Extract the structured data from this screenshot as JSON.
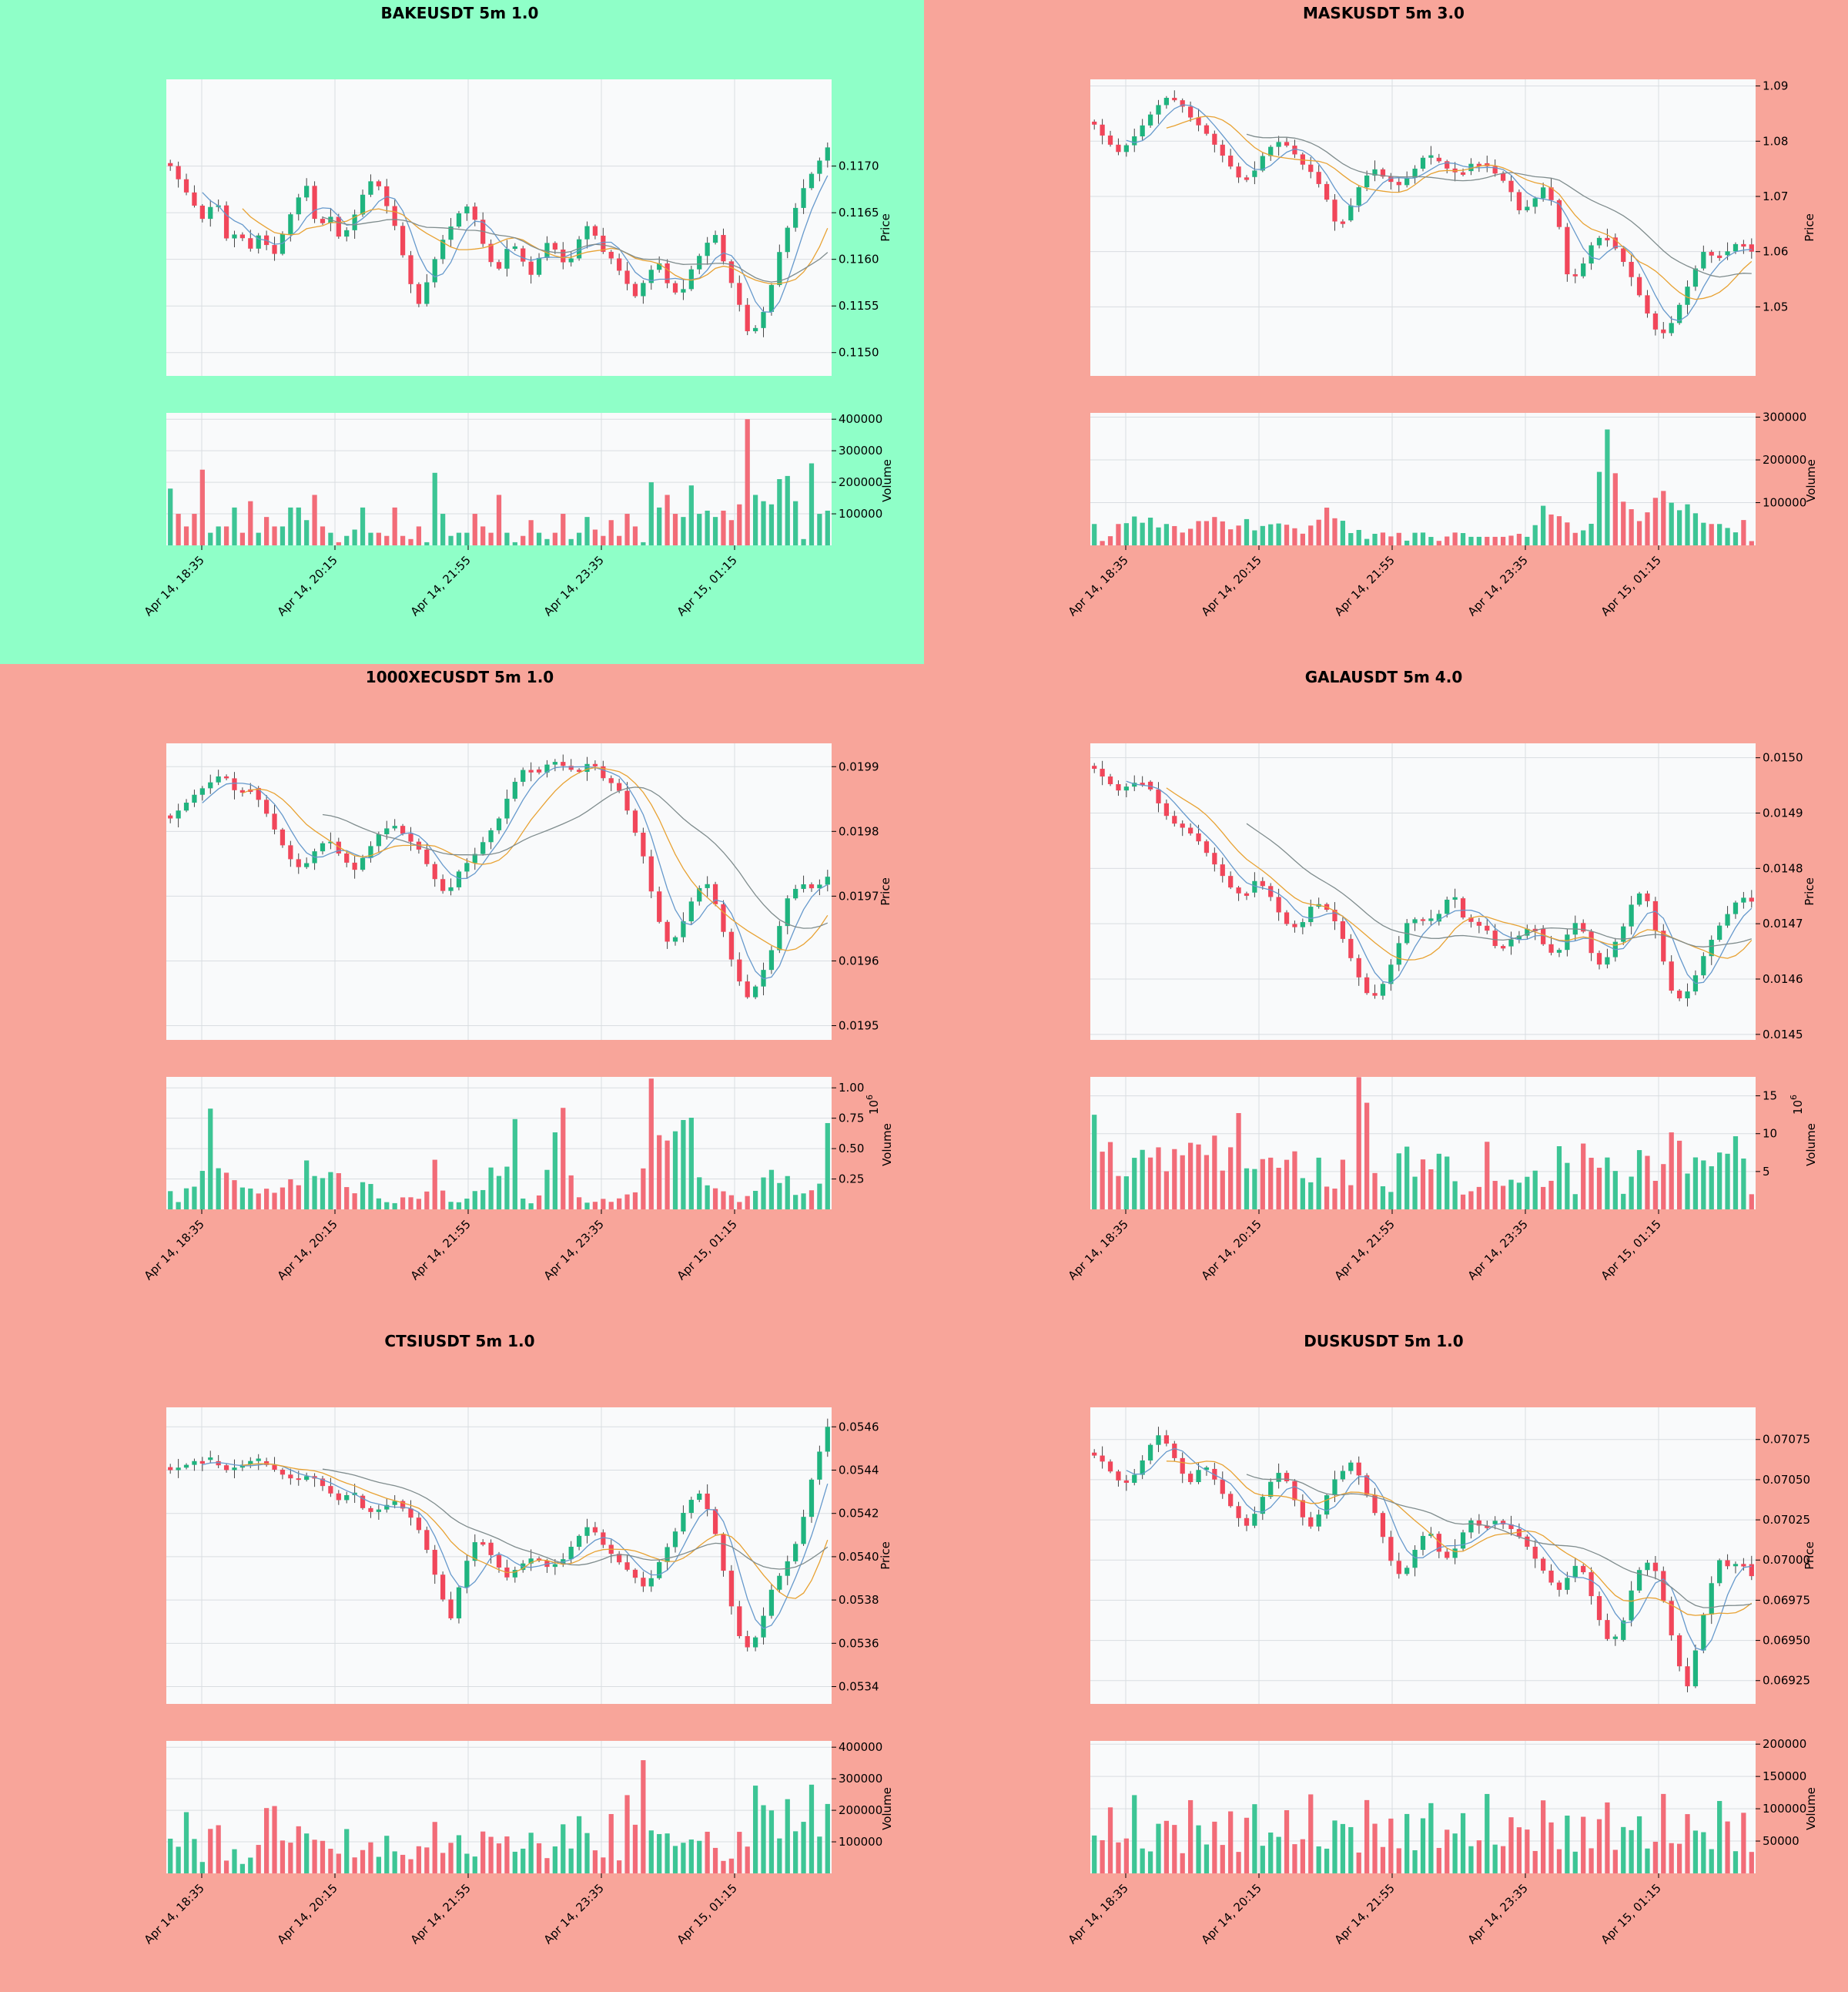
{
  "colors": {
    "bg_good": "#8fffc8",
    "bg_bad": "#f8a59a",
    "panel": "#f9fafb",
    "up": "#1fb47f",
    "down": "#f1465a",
    "vol_up": "#3dc595",
    "vol_down": "#f26c78",
    "ma_fast": "#6699cc",
    "ma_slow": "#e8a233",
    "ma_long": "#7f8c8d",
    "grid": "#d9dde1",
    "wick": "#444444"
  },
  "x_tick_labels": [
    "Apr 14, 18:35",
    "Apr 14, 20:15",
    "Apr 14, 21:55",
    "Apr 14, 23:35",
    "Apr 15, 01:15"
  ],
  "price_label": "Price",
  "volume_label": "Volume",
  "chart_data": [
    {
      "type": "candlestick",
      "title": "BAKEUSDT 5m 1.0",
      "background": "good",
      "ylabel": "Price",
      "ylim": [
        0.11475,
        0.11793
      ],
      "price_ticks": [
        "0.1150",
        "0.1155",
        "0.1160",
        "0.1165",
        "0.1170"
      ],
      "vlim": [
        0,
        420000
      ],
      "volume_ticks": [
        "100000",
        "200000",
        "300000",
        "400000"
      ],
      "volume_exponent": "",
      "path": [
        0.117,
        0.1168,
        0.1166,
        0.1164,
        0.1167,
        0.1162,
        0.1163,
        0.1161,
        0.1163,
        0.116,
        0.1163,
        0.1166,
        0.1168,
        0.1163,
        0.1165,
        0.1162,
        0.1164,
        0.1167,
        0.1169,
        0.1166,
        0.1163,
        0.1158,
        0.1155,
        0.1159,
        0.1162,
        0.1164,
        0.1166,
        0.1164,
        0.116,
        0.1159,
        0.1162,
        0.116,
        0.1158,
        0.1162,
        0.1161,
        0.1159,
        0.1162,
        0.1164,
        0.1161,
        0.116,
        0.1158,
        0.1156,
        0.1158,
        0.116,
        0.1157,
        0.1156,
        0.1159,
        0.1161,
        0.1163,
        0.1159,
        0.1156,
        0.1152,
        0.1153,
        0.1157,
        0.1162,
        0.1165,
        0.1168,
        0.117,
        0.1172
      ],
      "volumes": [
        180000,
        100000,
        60000,
        100000,
        240000,
        40000,
        60000,
        60000,
        120000,
        40000,
        140000,
        40000,
        90000,
        60000,
        60000,
        120000,
        120000,
        80000,
        160000,
        60000,
        40000,
        10000,
        30000,
        50000,
        120000,
        40000,
        40000,
        30000,
        120000,
        30000,
        20000,
        60000,
        10000,
        230000,
        100000,
        30000,
        40000,
        40000,
        100000,
        60000,
        40000,
        160000,
        40000,
        10000,
        30000,
        80000,
        40000,
        20000,
        40000,
        100000,
        20000,
        40000,
        90000,
        50000,
        30000,
        80000,
        30000,
        100000,
        60000,
        10000,
        200000,
        120000,
        160000,
        100000,
        90000,
        190000,
        100000,
        110000,
        90000,
        110000,
        80000,
        130000,
        400000,
        160000,
        140000,
        130000,
        210000,
        220000,
        140000,
        20000,
        260000,
        100000,
        110000
      ]
    },
    {
      "type": "candlestick",
      "title": "MASKUSDT 5m 3.0",
      "background": "bad",
      "ylabel": "Price",
      "ylim": [
        1.0375,
        1.0912
      ],
      "price_ticks": [
        "1.05",
        "1.06",
        "1.07",
        "1.08",
        "1.09"
      ],
      "vlim": [
        0,
        310000
      ],
      "volume_ticks": [
        "100000",
        "200000",
        "300000"
      ],
      "volume_exponent": "",
      "path": [
        1.083,
        1.08,
        1.078,
        1.08,
        1.083,
        1.086,
        1.088,
        1.087,
        1.084,
        1.082,
        1.079,
        1.076,
        1.073,
        1.074,
        1.078,
        1.08,
        1.079,
        1.076,
        1.074,
        1.07,
        1.064,
        1.068,
        1.073,
        1.075,
        1.073,
        1.072,
        1.074,
        1.077,
        1.077,
        1.075,
        1.074,
        1.076,
        1.076,
        1.074,
        1.072,
        1.067,
        1.069,
        1.072,
        1.067,
        1.054,
        1.057,
        1.062,
        1.063,
        1.06,
        1.056,
        1.051,
        1.046,
        1.045,
        1.05,
        1.055,
        1.06,
        1.059,
        1.06,
        1.062,
        1.06
      ],
      "volumes": [
        50000,
        10000,
        20000,
        50000,
        50000,
        70000,
        50000,
        70000,
        40000,
        50000,
        50000,
        30000,
        30000,
        60000,
        50000,
        70000,
        60000,
        50000,
        20000,
        80000,
        40000,
        30000,
        60000,
        40000,
        60000,
        40000,
        40000,
        20000,
        60000,
        60000,
        100000,
        50000,
        60000,
        20000,
        40000,
        10000,
        30000,
        30000,
        20000,
        30000,
        10000,
        30000,
        30000,
        20000,
        10000,
        20000,
        30000,
        30000,
        20000,
        20000,
        20000,
        20000,
        20000,
        20000,
        30000,
        20000,
        20000,
        100000,
        80000,
        60000,
        80000,
        20000,
        40000,
        30000,
        70000,
        260000,
        280000,
        90000,
        110000,
        70000,
        50000,
        90000,
        120000,
        130000,
        90000,
        80000,
        100000,
        70000,
        50000,
        50000,
        50000,
        40000,
        30000,
        60000,
        10000
      ]
    },
    {
      "type": "candlestick",
      "title": "1000XECUSDT 5m 1.0",
      "background": "bad",
      "ylabel": "Price",
      "ylim": [
        0.019478,
        0.019936
      ],
      "price_ticks": [
        "0.0195",
        "0.0196",
        "0.0197",
        "0.0198",
        "0.0199"
      ],
      "vlim": [
        0,
        1090000
      ],
      "volume_ticks": [
        "0.25",
        "0.50",
        "0.75",
        "1.00"
      ],
      "volume_exponent": "1e6",
      "path": [
        0.01982,
        0.01984,
        0.01986,
        0.019875,
        0.01989,
        0.01986,
        0.01987,
        0.01984,
        0.0198,
        0.01976,
        0.01974,
        0.01977,
        0.01979,
        0.01976,
        0.01974,
        0.01977,
        0.0198,
        0.01981,
        0.01979,
        0.01977,
        0.01973,
        0.0197,
        0.01974,
        0.01976,
        0.01979,
        0.01982,
        0.01987,
        0.0199,
        0.01989,
        0.01991,
        0.0199,
        0.01989,
        0.01991,
        0.01988,
        0.01987,
        0.01982,
        0.01976,
        0.01967,
        0.01962,
        0.01966,
        0.01971,
        0.01972,
        0.01965,
        0.01958,
        0.01954,
        0.01958,
        0.01963,
        0.0197,
        0.01972,
        0.01971,
        0.01973
      ],
      "volumes": [
        150000,
        40000,
        250000,
        110000,
        880000,
        280000,
        310000,
        180000,
        180000,
        130000,
        180000,
        110000,
        270000,
        180000,
        430000,
        210000,
        300000,
        320000,
        180000,
        120000,
        290000,
        100000,
        60000,
        50000,
        120000,
        80000,
        100000,
        420000,
        80000,
        50000,
        70000,
        150000,
        160000,
        430000,
        120000,
        850000,
        50000,
        50000,
        160000,
        570000,
        860000,
        180000,
        60000,
        50000,
        90000,
        60000,
        100000,
        140000,
        140000,
        1090000,
        520000,
        590000,
        700000,
        820000,
        220000,
        190000,
        160000,
        130000,
        60000,
        120000,
        170000,
        370000,
        210000,
        280000,
        60000,
        190000,
        100000,
        710000
      ]
    },
    {
      "type": "candlestick",
      "title": "GALAUSDT 5m 4.0",
      "background": "bad",
      "ylabel": "Price",
      "ylim": [
        0.01449,
        0.015026
      ],
      "price_ticks": [
        "0.0145",
        "0.0146",
        "0.0147",
        "0.0148",
        "0.0149",
        "0.0150"
      ],
      "vlim": [
        0,
        17500000
      ],
      "volume_ticks": [
        "5",
        "10",
        "15"
      ],
      "volume_exponent": "1e6",
      "path": [
        0.01498,
        0.01496,
        0.01494,
        0.01495,
        0.01496,
        0.01494,
        0.0149,
        0.01488,
        0.01487,
        0.01485,
        0.01482,
        0.01479,
        0.01476,
        0.01475,
        0.01478,
        0.01476,
        0.01472,
        0.01469,
        0.0147,
        0.01474,
        0.01473,
        0.0147,
        0.01465,
        0.0146,
        0.01456,
        0.01459,
        0.01464,
        0.0147,
        0.01471,
        0.0147,
        0.01472,
        0.01476,
        0.01471,
        0.0147,
        0.01469,
        0.01465,
        0.01467,
        0.01468,
        0.0147,
        0.01466,
        0.01464,
        0.01468,
        0.01471,
        0.01465,
        0.01462,
        0.01466,
        0.0147,
        0.01476,
        0.01474,
        0.01466,
        0.01458,
        0.01456,
        0.0146,
        0.01465,
        0.01469,
        0.01472,
        0.01475,
        0.01474
      ],
      "volumes": [
        12500000,
        7500000,
        9500000,
        4500000,
        4000000,
        5500000,
        9800000,
        4500000,
        10000000,
        6300000,
        4000000,
        10500000,
        5500000,
        10000000,
        8200000,
        7000000,
        10000000,
        5000000,
        8000000,
        13500000,
        5500000,
        5000000,
        6500000,
        7000000,
        6500000,
        4000000,
        9500000,
        6000000,
        2800000,
        4000000,
        8000000,
        1500000,
        3000000,
        7000000,
        3000000,
        17500000,
        14800000,
        5000000,
        3500000,
        1200000,
        5500000,
        11500000,
        3000000,
        6000000,
        7200000,
        3800000,
        9500000,
        5800000,
        3000000,
        1700000,
        2500000,
        3000000,
        9000000,
        3800000,
        3000000,
        4000000,
        3500000,
        3600000,
        6000000,
        3500000,
        2200000,
        5500000,
        10800000,
        3000000,
        1500000,
        11500000,
        5500000,
        5500000,
        7000000,
        5000000,
        2000000,
        4000000,
        7800000,
        8000000,
        3500000,
        4500000,
        9000000,
        12000000,
        5500000,
        4000000,
        9000000,
        5000000,
        6000000,
        8000000,
        7200000,
        10000000,
        6500000,
        2000000
      ]
    },
    {
      "type": "candlestick",
      "title": "CTSIUSDT 5m 1.0",
      "background": "bad",
      "ylabel": "Price",
      "ylim": [
        0.05332,
        0.05469
      ],
      "price_ticks": [
        "0.0534",
        "0.0536",
        "0.0538",
        "0.0540",
        "0.0542",
        "0.0544",
        "0.0546"
      ],
      "vlim": [
        0,
        420000
      ],
      "volume_ticks": [
        "100000",
        "200000",
        "300000",
        "400000"
      ],
      "volume_exponent": "",
      "path": [
        0.0544,
        0.05442,
        0.05445,
        0.05444,
        0.0544,
        0.05442,
        0.05445,
        0.05442,
        0.05438,
        0.05435,
        0.05438,
        0.05432,
        0.05426,
        0.0543,
        0.0542,
        0.05422,
        0.05426,
        0.0542,
        0.0541,
        0.0539,
        0.0537,
        0.05395,
        0.0541,
        0.054,
        0.0539,
        0.05396,
        0.054,
        0.05395,
        0.05398,
        0.05408,
        0.05415,
        0.05405,
        0.05398,
        0.05392,
        0.05385,
        0.05398,
        0.0541,
        0.05425,
        0.0543,
        0.0541,
        0.0538,
        0.05356,
        0.05364,
        0.05385,
        0.05396,
        0.0541,
        0.0544,
        0.0546
      ],
      "volumes": [
        110000,
        80000,
        200000,
        120000,
        20000,
        130000,
        190000,
        20000,
        100000,
        20000,
        50000,
        50000,
        150000,
        280000,
        140000,
        70000,
        120000,
        170000,
        100000,
        110000,
        100000,
        70000,
        60000,
        160000,
        30000,
        80000,
        100000,
        50000,
        120000,
        70000,
        60000,
        40000,
        90000,
        60000,
        190000,
        60000,
        80000,
        140000,
        80000,
        30000,
        90000,
        190000,
        30000,
        160000,
        80000,
        60000,
        90000,
        150000,
        70000,
        40000,
        100000,
        170000,
        60000,
        200000,
        120000,
        70000,
        50000,
        190000,
        30000,
        260000,
        120000,
        400000,
        140000,
        120000,
        140000,
        90000,
        80000,
        130000,
        70000,
        150000,
        110000,
        50000,
        30000,
        60000,
        180000,
        30000,
        400000,
        140000,
        220000,
        80000,
        270000,
        110000,
        170000,
        290000,
        110000,
        220000
      ]
    },
    {
      "type": "candlestick",
      "title": "DUSKUSDT 5m 1.0",
      "background": "bad",
      "ylabel": "Price",
      "ylim": [
        0.069105,
        0.07095
      ],
      "price_ticks": [
        "0.06925",
        "0.06950",
        "0.06975",
        "0.07000",
        "0.07025",
        "0.07050",
        "0.07075"
      ],
      "vlim": [
        0,
        205000
      ],
      "volume_ticks": [
        "50000",
        "100000",
        "150000",
        "200000"
      ],
      "volume_exponent": "",
      "path": [
        0.07065,
        0.0706,
        0.0705,
        0.07048,
        0.07055,
        0.0707,
        0.07078,
        0.0707,
        0.07055,
        0.07048,
        0.0706,
        0.07052,
        0.0704,
        0.0703,
        0.0702,
        0.0703,
        0.07045,
        0.07055,
        0.07048,
        0.0703,
        0.0702,
        0.0703,
        0.07048,
        0.07055,
        0.07062,
        0.07045,
        0.0703,
        0.0701,
        0.0699,
        0.06995,
        0.0701,
        0.0702,
        0.07005,
        0.07,
        0.07015,
        0.07025,
        0.0702,
        0.07025,
        0.07022,
        0.07018,
        0.0701,
        0.07,
        0.0699,
        0.0698,
        0.0699,
        0.07,
        0.0698,
        0.0696,
        0.06945,
        0.0696,
        0.06985,
        0.07,
        0.06995,
        0.0697,
        0.0694,
        0.0692,
        0.0695,
        0.0698,
        0.07,
        0.06995,
        0.07,
        0.0699
      ]
    }
  ]
}
